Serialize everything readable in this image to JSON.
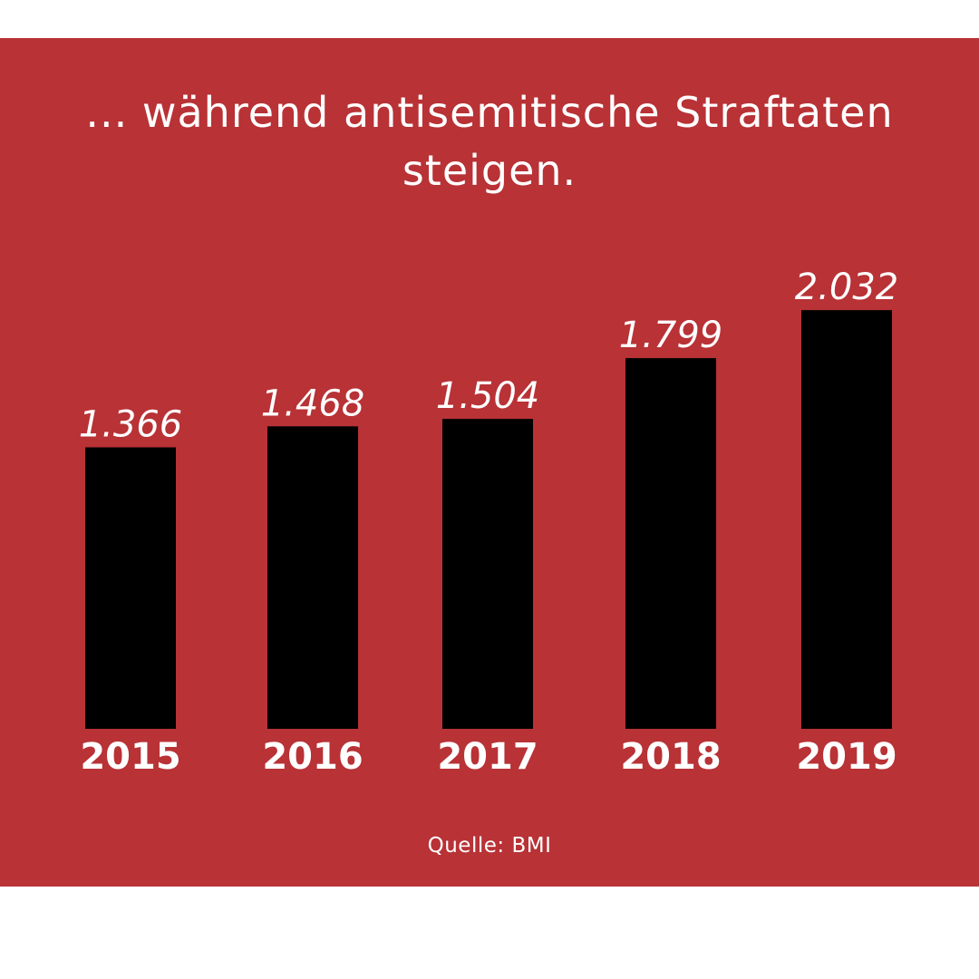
{
  "title": "... während antisemitische Straftaten steigen.",
  "source": "Quelle: BMI",
  "colors": {
    "background": "#b83236",
    "bar": "#000000",
    "text": "#ffffff"
  },
  "chart_data": {
    "type": "bar",
    "title": "... während antisemitische Straftaten steigen.",
    "categories": [
      "2015",
      "2016",
      "2017",
      "2018",
      "2019"
    ],
    "values": [
      1366,
      1468,
      1504,
      1799,
      2032
    ],
    "value_labels": [
      "1.366",
      "1.468",
      "1.504",
      "1.799",
      "2.032"
    ],
    "xlabel": "",
    "ylabel": "",
    "grid": false
  }
}
